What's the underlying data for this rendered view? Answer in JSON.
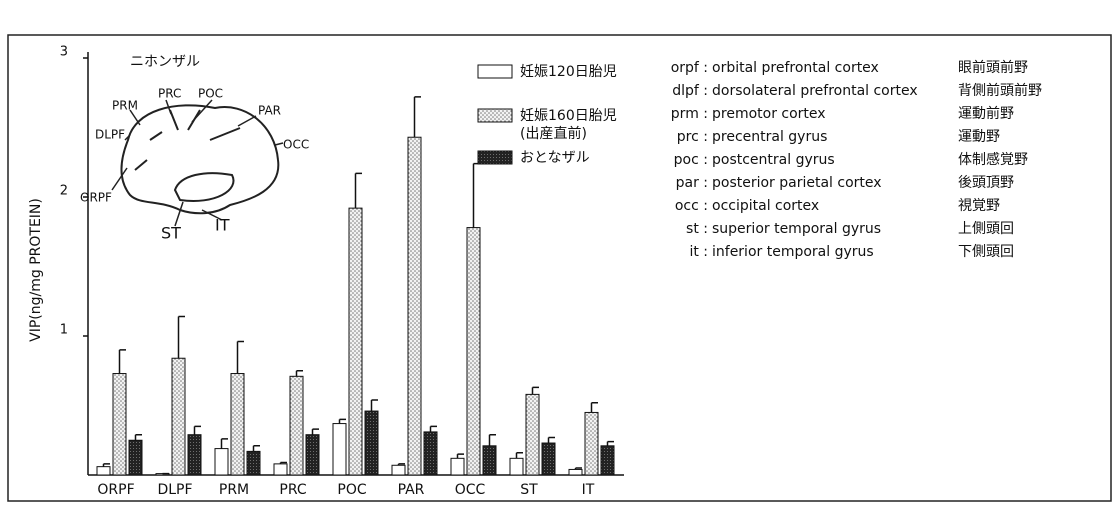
{
  "chart_data": {
    "type": "bar",
    "y_label": "VIP(ng/mg PROTEIN)",
    "categories": [
      "ORPF",
      "DLPF",
      "PRM",
      "PRC",
      "POC",
      "PAR",
      "OCC",
      "ST",
      "IT"
    ],
    "series": [
      {
        "name": "妊娠120日胎児",
        "color": "#ffffff",
        "values": [
          0.06,
          0.01,
          0.19,
          0.08,
          0.37,
          0.07,
          0.12,
          0.12,
          0.04
        ],
        "errors": [
          0.02,
          0,
          0.07,
          0.01,
          0.03,
          0.01,
          0.03,
          0.04,
          0.01
        ]
      },
      {
        "name": "妊娠160日胎児",
        "subname": "(出産直前)",
        "color": "#dcdcdc",
        "values": [
          0.73,
          0.84,
          0.73,
          0.71,
          1.92,
          2.43,
          1.78,
          0.58,
          0.45
        ],
        "errors": [
          0.17,
          0.3,
          0.23,
          0.04,
          0.25,
          0.29,
          0.46,
          0.05,
          0.07
        ]
      },
      {
        "name": "おとなザル",
        "color": "#222222",
        "values": [
          0.25,
          0.29,
          0.17,
          0.29,
          0.46,
          0.31,
          0.21,
          0.23,
          0.21
        ],
        "errors": [
          0.04,
          0.06,
          0.04,
          0.04,
          0.08,
          0.04,
          0.08,
          0.04,
          0.03
        ]
      }
    ],
    "ylim": [
      0,
      3
    ],
    "yticks": [
      1,
      2,
      3
    ],
    "inset": {
      "title": "ニホンザル",
      "labels": [
        "PRC",
        "POC",
        "PRM",
        "PAR",
        "DLPF",
        "OCC",
        "ORPF",
        "ST",
        "IT"
      ]
    },
    "abbreviations": [
      [
        "orpf :",
        "orbital prefrontal cortex",
        "眼前頭前野"
      ],
      [
        "dlpf :",
        "dorsolateral prefrontal cortex",
        "背側前頭前野"
      ],
      [
        "prm :",
        "premotor cortex",
        "運動前野"
      ],
      [
        "prc :",
        "precentral gyrus",
        "運動野"
      ],
      [
        "poc :",
        "postcentral gyrus",
        "体制感覚野"
      ],
      [
        "par :",
        "posterior parietal cortex",
        "後頭頂野"
      ],
      [
        "occ :",
        "occipital cortex",
        "視覚野"
      ],
      [
        "st :",
        "superior temporal gyrus",
        "上側頭回"
      ],
      [
        "it :",
        "inferior temporal gyrus",
        "下側頭回"
      ]
    ]
  }
}
